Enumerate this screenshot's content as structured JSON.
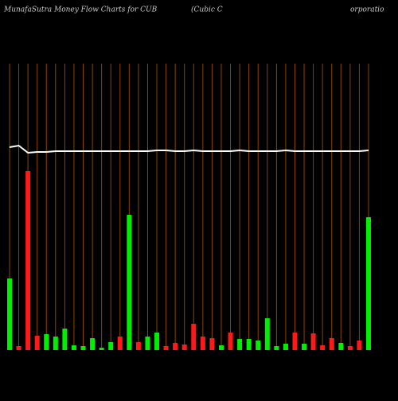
{
  "chart_data": {
    "type": "bar-line",
    "title": "MunafaSutra  Money Flow  Charts for CUB",
    "subtitle_parts": [
      "(Cubic C",
      "orporatio"
    ],
    "categories": [
      null,
      null,
      null,
      null,
      null,
      null,
      null,
      null,
      null,
      null,
      null,
      null,
      null,
      null,
      null,
      null,
      null,
      null,
      null,
      null,
      null,
      null,
      null,
      null,
      null,
      null,
      null,
      null,
      null,
      null,
      null,
      null,
      null,
      null,
      null,
      null,
      null,
      null,
      null,
      null
    ],
    "series": [
      {
        "type": "bar",
        "values": [
          90,
          5,
          225,
          18,
          20,
          17,
          27,
          6,
          5,
          15,
          3,
          10,
          17,
          170,
          10,
          17,
          22,
          5,
          9,
          7,
          33,
          17,
          15,
          6,
          22,
          14,
          14,
          12,
          40,
          5,
          8,
          22,
          8,
          21,
          6,
          15,
          9,
          5,
          12,
          167
        ],
        "colors": [
          "#00ee00",
          "#ff1a1a",
          "#ff1a1a",
          "#ff1a1a",
          "#00ee00",
          "#00ee00",
          "#00ee00",
          "#00ee00",
          "#00ee00",
          "#00ee00",
          "#00ee00",
          "#00ee00",
          "#ff1a1a",
          "#00ee00",
          "#ff1a1a",
          "#00ee00",
          "#00ee00",
          "#ff1a1a",
          "#ff1a1a",
          "#ff1a1a",
          "#ff1a1a",
          "#ff1a1a",
          "#ff1a1a",
          "#00ee00",
          "#ff1a1a",
          "#00ee00",
          "#00ee00",
          "#00ee00",
          "#00ee00",
          "#00ee00",
          "#00ee00",
          "#ff1a1a",
          "#00ee00",
          "#ff1a1a",
          "#ff1a1a",
          "#ff1a1a",
          "#00ee00",
          "#ff1a1a",
          "#ff1a1a",
          "#00ee00"
        ]
      },
      {
        "type": "line",
        "color": "#ffffff",
        "values": [
          255,
          257,
          248,
          249,
          249,
          250,
          250,
          250,
          250,
          250,
          250,
          250,
          250,
          250,
          250,
          250,
          251,
          251,
          250,
          250,
          251,
          250,
          250,
          250,
          250,
          251,
          250,
          250,
          250,
          250,
          251,
          250,
          250,
          250,
          250,
          250,
          250,
          250,
          250,
          251
        ]
      }
    ],
    "ylim": [
      0,
      360
    ],
    "category_line_color": "#8b4500",
    "background": "#000000"
  }
}
